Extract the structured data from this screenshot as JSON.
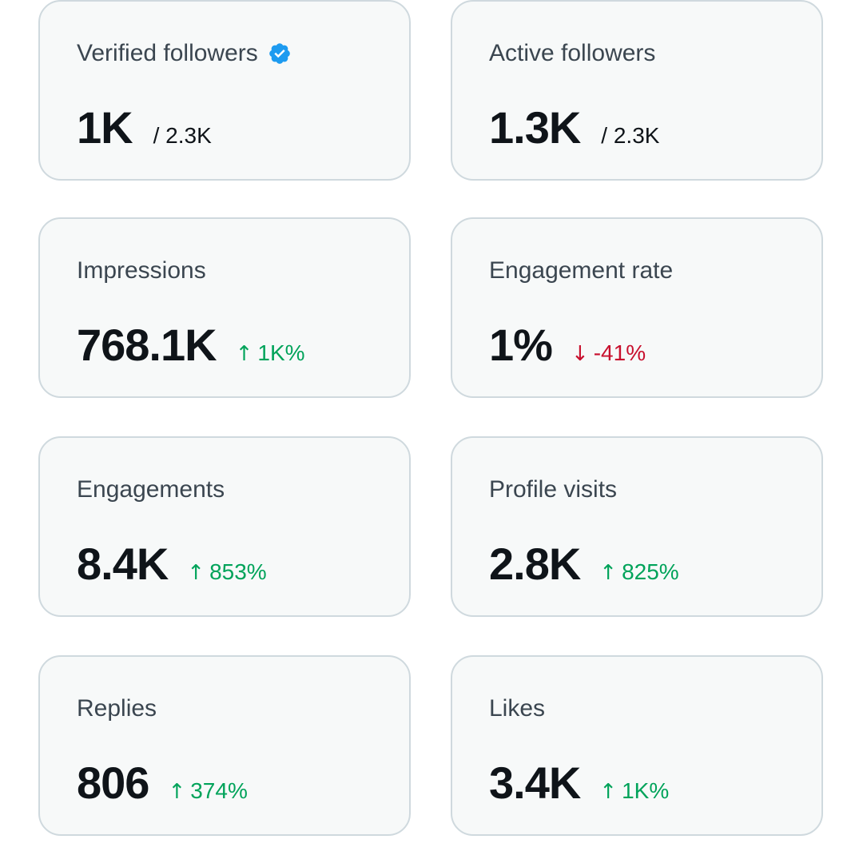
{
  "colors": {
    "card_bg": "#f7f9f9",
    "card_border": "#cfd9de",
    "label": "#3b4650",
    "value": "#0f1419",
    "up": "#00a35a",
    "down": "#c8102e",
    "verified": "#1d9bf0"
  },
  "cards": {
    "verified_followers": {
      "label": "Verified followers",
      "value": "1K",
      "subvalue": "/ 2.3K",
      "icon": "verified-badge-icon"
    },
    "active_followers": {
      "label": "Active followers",
      "value": "1.3K",
      "subvalue": "/ 2.3K"
    },
    "impressions": {
      "label": "Impressions",
      "value": "768.1K",
      "arrow": "↑",
      "change": "1K%",
      "trend": "up"
    },
    "engagement_rate": {
      "label": "Engagement rate",
      "value": "1%",
      "arrow": "↓",
      "change": "-41%",
      "trend": "down"
    },
    "engagements": {
      "label": "Engagements",
      "value": "8.4K",
      "arrow": "↑",
      "change": "853%",
      "trend": "up"
    },
    "profile_visits": {
      "label": "Profile visits",
      "value": "2.8K",
      "arrow": "↑",
      "change": "825%",
      "trend": "up"
    },
    "replies": {
      "label": "Replies",
      "value": "806",
      "arrow": "↑",
      "change": "374%",
      "trend": "up"
    },
    "likes": {
      "label": "Likes",
      "value": "3.4K",
      "arrow": "↑",
      "change": "1K%",
      "trend": "up"
    }
  }
}
